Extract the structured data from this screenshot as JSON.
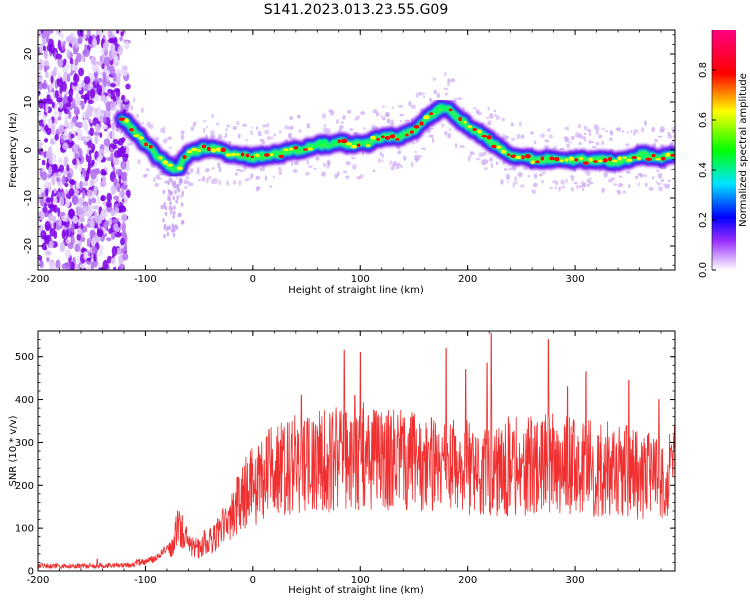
{
  "title": "S141.2023.013.23.55.G09",
  "colorbar": {
    "label": "Normalized spectral amplitude",
    "ticks": [
      "0.0",
      "0.2",
      "0.4",
      "0.6",
      "0.8"
    ],
    "tick_values": [
      0.0,
      0.2,
      0.4,
      0.6,
      0.8
    ],
    "range": [
      0,
      0.96
    ],
    "colors": [
      "#ffffff",
      "#7b00e6",
      "#0000ff",
      "#00ffff",
      "#00ff00",
      "#ffff00",
      "#ff0000",
      "#ff0080"
    ]
  },
  "chart_data": [
    {
      "type": "heatmap",
      "xlabel": "Height of straight line (km)",
      "ylabel": "Frequency (Hz)",
      "xlim": [
        -200,
        393
      ],
      "ylim": [
        -25,
        25
      ],
      "xticks": [
        "-200",
        "-100",
        "0",
        "100",
        "200",
        "300"
      ],
      "xtick_values": [
        -200,
        -100,
        0,
        100,
        200,
        300
      ],
      "yticks": [
        "-20",
        "-10",
        "0",
        "10",
        "20"
      ],
      "ytick_values": [
        -20,
        -10,
        0,
        10,
        20
      ],
      "noise_region_x": [
        -200,
        -120
      ],
      "ridge": {
        "x": [
          -120,
          -110,
          -100,
          -90,
          -80,
          -70,
          -60,
          -50,
          -40,
          -30,
          -20,
          -10,
          0,
          20,
          40,
          60,
          80,
          100,
          120,
          140,
          150,
          160,
          170,
          180,
          190,
          200,
          220,
          240,
          260,
          280,
          300,
          320,
          340,
          360,
          380,
          393
        ],
        "y": [
          6,
          4,
          1,
          -1,
          -3,
          -4,
          -1,
          0,
          0.5,
          0,
          -1,
          -1,
          -1.5,
          -1,
          0,
          1,
          1.5,
          1,
          2.5,
          3,
          4,
          6,
          8,
          9,
          7,
          5,
          2,
          -1,
          -2,
          -2,
          -2,
          -2,
          -2.5,
          -1,
          -1.5,
          -1
        ]
      }
    },
    {
      "type": "line",
      "xlabel": "Height of straight line (km)",
      "ylabel": "SNR (10 * v/v)",
      "xlim": [
        -200,
        393
      ],
      "ylim": [
        0,
        560
      ],
      "xticks": [
        "-200",
        "-100",
        "0",
        "100",
        "200",
        "300"
      ],
      "xtick_values": [
        -200,
        -100,
        0,
        100,
        200,
        300
      ],
      "yticks": [
        "0",
        "100",
        "200",
        "300",
        "400",
        "500"
      ],
      "ytick_values": [
        0,
        100,
        200,
        300,
        400,
        500
      ],
      "color": "#f03030",
      "envelope": {
        "x": [
          -200,
          -150,
          -110,
          -90,
          -75,
          -68,
          -60,
          -50,
          -40,
          -30,
          -20,
          -10,
          0,
          20,
          40,
          60,
          80,
          100,
          120,
          140,
          160,
          180,
          200,
          220,
          240,
          260,
          280,
          300,
          320,
          340,
          360,
          380,
          393
        ],
        "y": [
          12,
          12,
          14,
          25,
          65,
          110,
          60,
          55,
          70,
          90,
          130,
          170,
          200,
          235,
          250,
          255,
          260,
          270,
          260,
          255,
          250,
          245,
          240,
          240,
          245,
          245,
          250,
          245,
          240,
          235,
          225,
          230,
          240
        ]
      },
      "peaks": {
        "x": [
          -145,
          -70,
          -45,
          -28,
          15,
          45,
          85,
          95,
          100,
          180,
          198,
          218,
          222,
          275,
          293,
          310,
          350,
          378
        ],
        "y": [
          28,
          140,
          95,
          145,
          330,
          410,
          515,
          410,
          510,
          520,
          470,
          485,
          555,
          540,
          430,
          465,
          445,
          400
        ]
      }
    }
  ]
}
